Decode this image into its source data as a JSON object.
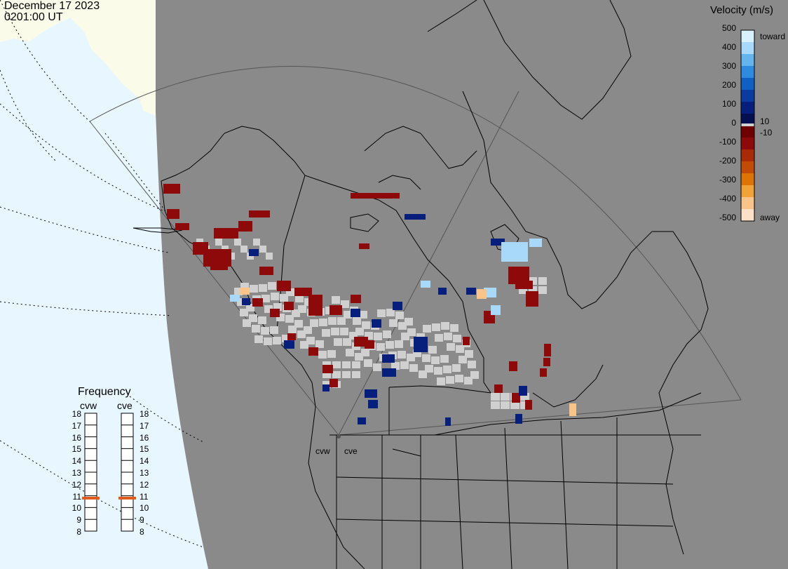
{
  "header": {
    "date": "December 17 2023",
    "time": "0201:00 UT"
  },
  "velocity_scale": {
    "title": "Velocity (m/s)",
    "ticks": [
      "500",
      "400",
      "300",
      "200",
      "100",
      "0",
      "-100",
      "-200",
      "-300",
      "-400",
      "-500"
    ],
    "side_labels": {
      "toward": "toward",
      "ten": "10",
      "minus_ten": "-10",
      "away": "away"
    },
    "colors": [
      "#d8f0ff",
      "#a8d8fa",
      "#64b5ee",
      "#2f8be0",
      "#1060c4",
      "#0b3aa0",
      "#061e7c",
      "#030f50",
      "#6f0000",
      "#8e0a0a",
      "#a82a06",
      "#c24c04",
      "#de7406",
      "#f3a238",
      "#f8c489",
      "#fde0c8"
    ]
  },
  "frequency": {
    "title": "Frequency",
    "radars": [
      "cvw",
      "cve"
    ],
    "scale": [
      "18",
      "17",
      "16",
      "15",
      "14",
      "13",
      "12",
      "11",
      "10",
      "9",
      "8"
    ],
    "values_mhz": [
      10.8,
      10.8
    ],
    "marker_color": "#e05a1a"
  },
  "radar_sites": [
    "cvw",
    "cve"
  ],
  "colors": {
    "ocean": "#e8f6ff",
    "land_top": "#fbfbea",
    "outside": "#8a8a8a",
    "fov_backscatter": "#d0d0d0",
    "coast": "#000000"
  }
}
